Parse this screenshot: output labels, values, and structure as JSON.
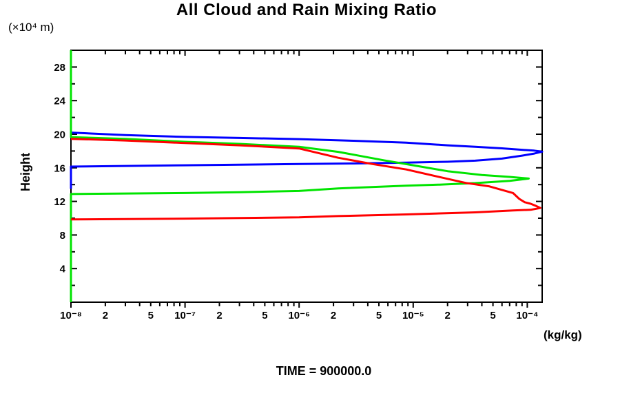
{
  "chart_data": {
    "type": "line",
    "title": "All Cloud and Rain Mixing Ratio",
    "y_axis_label": "Height",
    "y_axis_unit": "(×10⁴ m)",
    "x_axis_unit": "(kg/kg)",
    "caption": "TIME = 900000.0",
    "x_scale": "log",
    "xlim": [
      1e-08,
      0.000135
    ],
    "ylim": [
      0,
      30
    ],
    "grid": false,
    "legend": null,
    "y_major_ticks": [
      4,
      8,
      12,
      16,
      20,
      24,
      28
    ],
    "y_minor_ticks": [
      2,
      6,
      10,
      14,
      18,
      22,
      26,
      30
    ],
    "x_tick_labels": [
      {
        "v": 1e-08,
        "t": "10⁻⁸"
      },
      {
        "v": 2e-08,
        "t": "2"
      },
      {
        "v": 5e-08,
        "t": "5"
      },
      {
        "v": 1e-07,
        "t": "10⁻⁷"
      },
      {
        "v": 2e-07,
        "t": "2"
      },
      {
        "v": 5e-07,
        "t": "5"
      },
      {
        "v": 1e-06,
        "t": "10⁻⁶"
      },
      {
        "v": 2e-06,
        "t": "2"
      },
      {
        "v": 5e-06,
        "t": "5"
      },
      {
        "v": 1e-05,
        "t": "10⁻⁵"
      },
      {
        "v": 2e-05,
        "t": "2"
      },
      {
        "v": 5e-05,
        "t": "5"
      },
      {
        "v": 0.0001,
        "t": "10⁻⁴"
      }
    ],
    "series": [
      {
        "name": "blue-curve",
        "color": "#0000ff",
        "points": [
          [
            1e-08,
            13.5
          ],
          [
            1e-08,
            16.15
          ],
          [
            1e-07,
            16.3
          ],
          [
            1e-06,
            16.45
          ],
          [
            3e-06,
            16.52
          ],
          [
            8.7e-06,
            16.62
          ],
          [
            2e-05,
            16.72
          ],
          [
            3.5e-05,
            16.85
          ],
          [
            6e-05,
            17.1
          ],
          [
            9e-05,
            17.45
          ],
          [
            0.000115,
            17.7
          ],
          [
            0.000135,
            17.93
          ],
          [
            0.000115,
            18.05
          ],
          [
            9e-05,
            18.15
          ],
          [
            6e-05,
            18.32
          ],
          [
            3.5e-05,
            18.5
          ],
          [
            2e-05,
            18.68
          ],
          [
            8.7e-06,
            19.0
          ],
          [
            3e-06,
            19.22
          ],
          [
            1e-06,
            19.42
          ],
          [
            3e-07,
            19.56
          ],
          [
            1e-07,
            19.68
          ],
          [
            3e-08,
            19.9
          ],
          [
            1e-08,
            20.2
          ]
        ]
      },
      {
        "name": "green-curve",
        "color": "#00e400",
        "points": [
          [
            1e-08,
            30
          ],
          [
            1e-08,
            19.65
          ],
          [
            3e-08,
            19.45
          ],
          [
            1e-07,
            19.1
          ],
          [
            3e-07,
            18.85
          ],
          [
            1e-06,
            18.5
          ],
          [
            2.2e-06,
            17.9
          ],
          [
            5.5e-06,
            16.9
          ],
          [
            1e-05,
            16.3
          ],
          [
            2e-05,
            15.6
          ],
          [
            4e-05,
            15.15
          ],
          [
            7e-05,
            14.92
          ],
          [
            0.000103,
            14.72
          ],
          [
            7e-05,
            14.45
          ],
          [
            3.5e-05,
            14.18
          ],
          [
            1.7e-05,
            14.0
          ],
          [
            8.7e-06,
            13.88
          ],
          [
            2.2e-06,
            13.55
          ],
          [
            1e-06,
            13.25
          ],
          [
            3e-07,
            13.1
          ],
          [
            1e-07,
            13.0
          ],
          [
            1e-08,
            12.88
          ],
          [
            1e-08,
            0
          ]
        ]
      },
      {
        "name": "red-curve",
        "color": "#ff0000",
        "points": [
          [
            1e-08,
            19.45
          ],
          [
            3e-08,
            19.25
          ],
          [
            1e-07,
            18.95
          ],
          [
            3e-07,
            18.68
          ],
          [
            1e-06,
            18.3
          ],
          [
            2.2e-06,
            17.2
          ],
          [
            4.4e-06,
            16.45
          ],
          [
            8.7e-06,
            15.8
          ],
          [
            1.7e-05,
            14.9
          ],
          [
            2.9e-05,
            14.2
          ],
          [
            4.6e-05,
            13.8
          ],
          [
            7.5e-05,
            13.0
          ],
          [
            8.5e-05,
            12.3
          ],
          [
            9.5e-05,
            11.9
          ],
          [
            0.000107,
            11.72
          ],
          [
            0.00012,
            11.45
          ],
          [
            0.00013,
            11.22
          ],
          [
            0.000107,
            11.0
          ],
          [
            7.5e-05,
            10.93
          ],
          [
            3.5e-05,
            10.7
          ],
          [
            8.7e-06,
            10.45
          ],
          [
            2.2e-06,
            10.25
          ],
          [
            1e-06,
            10.1
          ],
          [
            1e-07,
            9.95
          ],
          [
            1e-08,
            9.85
          ]
        ]
      }
    ]
  }
}
